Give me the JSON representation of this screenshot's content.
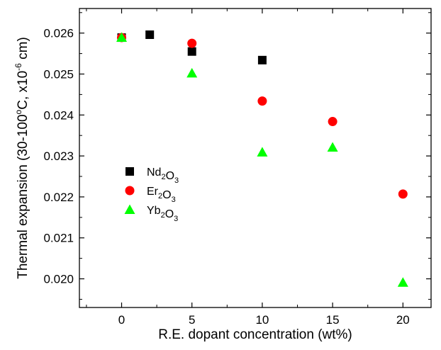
{
  "chart_data": {
    "type": "scatter",
    "xlabel": "R.E. dopant concentration (wt%)",
    "ylabel": "Thermal expansion (30-100°C, x10⁻⁶ cm)",
    "xlim": [
      -3,
      22
    ],
    "ylim": [
      0.0193,
      0.0266
    ],
    "xticks": [
      0,
      5,
      10,
      15,
      20
    ],
    "yticks": [
      0.02,
      0.021,
      0.022,
      0.023,
      0.024,
      0.025,
      0.026
    ],
    "xtick_labels": [
      "0",
      "5",
      "10",
      "15",
      "20"
    ],
    "ytick_labels": [
      "0.020",
      "0.021",
      "0.022",
      "0.023",
      "0.024",
      "0.025",
      "0.026"
    ],
    "grid": false,
    "legend_position": "left",
    "series": [
      {
        "name": "Nd2O3",
        "marker": "square",
        "color": "#000000",
        "x": [
          0,
          2,
          5,
          10
        ],
        "y": [
          0.02589,
          0.02596,
          0.02555,
          0.02534
        ]
      },
      {
        "name": "Er2O3",
        "marker": "circle",
        "color": "#ff0000",
        "x": [
          0,
          5,
          10,
          15,
          20
        ],
        "y": [
          0.02589,
          0.02575,
          0.02434,
          0.02384,
          0.02207
        ]
      },
      {
        "name": "Yb2O3",
        "marker": "triangle",
        "color": "#00ff00",
        "x": [
          0,
          5,
          10,
          15,
          20
        ],
        "y": [
          0.02589,
          0.02502,
          0.02309,
          0.02321,
          0.01991
        ]
      }
    ]
  }
}
